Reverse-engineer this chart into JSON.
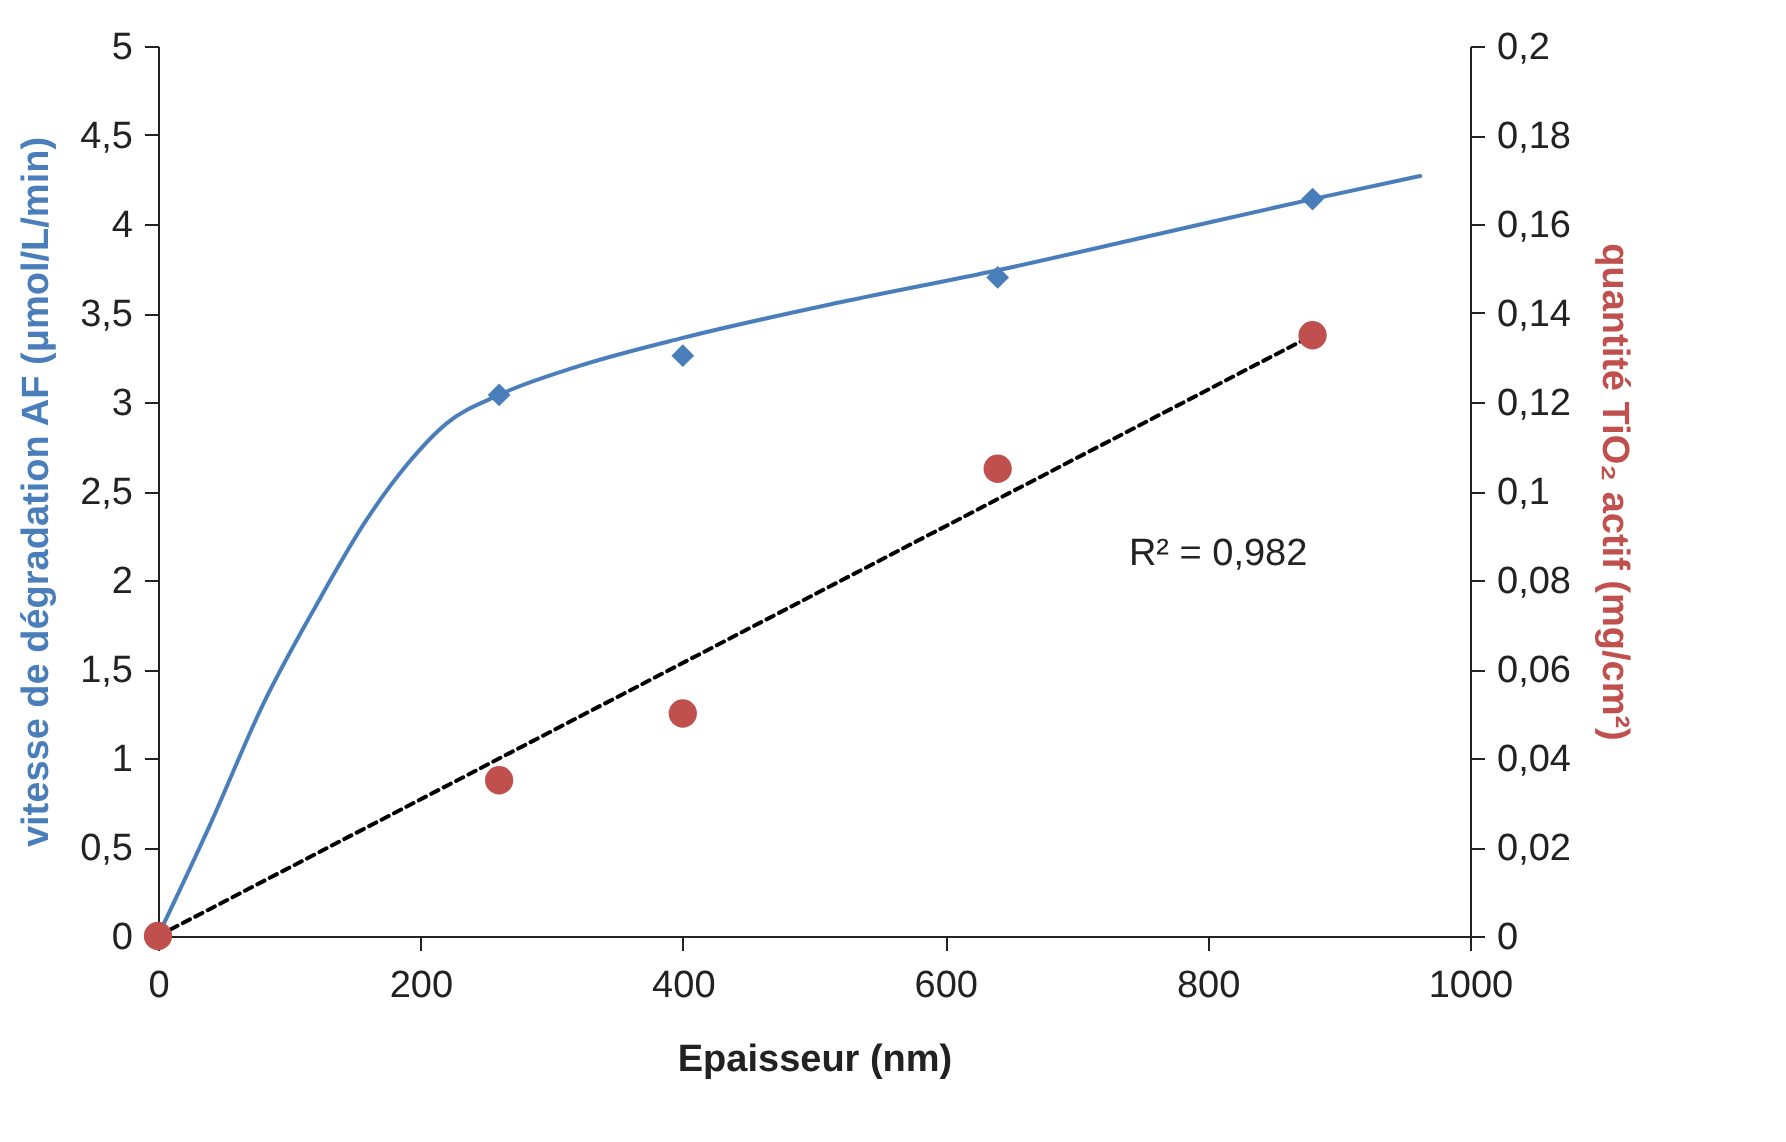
{
  "chart_data": {
    "type": "scatter",
    "xlabel": "Epaisseur (nm)",
    "ylabel": "vitesse de dégradation AF (μmol/L/min)",
    "y2label": "quantité TiO₂ actif (mg/cm²)",
    "xlim": [
      0,
      1000
    ],
    "xticks": [
      0,
      200,
      400,
      600,
      800,
      1000
    ],
    "ylim": [
      0,
      5
    ],
    "yticks": [
      {
        "value": 0,
        "label": "0"
      },
      {
        "value": 0.5,
        "label": "0,5"
      },
      {
        "value": 1,
        "label": "1"
      },
      {
        "value": 1.5,
        "label": "1,5"
      },
      {
        "value": 2,
        "label": "2"
      },
      {
        "value": 2.5,
        "label": "2,5"
      },
      {
        "value": 3,
        "label": "3"
      },
      {
        "value": 3.5,
        "label": "3,5"
      },
      {
        "value": 4,
        "label": "4"
      },
      {
        "value": 4.5,
        "label": "4,5"
      },
      {
        "value": 5,
        "label": "5"
      }
    ],
    "y2lim": [
      0,
      0.2
    ],
    "y2ticks": [
      {
        "value": 0,
        "label": "0"
      },
      {
        "value": 0.02,
        "label": "0,02"
      },
      {
        "value": 0.04,
        "label": "0,04"
      },
      {
        "value": 0.06,
        "label": "0,06"
      },
      {
        "value": 0.08,
        "label": "0,08"
      },
      {
        "value": 0.1,
        "label": "0,1"
      },
      {
        "value": 0.12,
        "label": "0,12"
      },
      {
        "value": 0.14,
        "label": "0,14"
      },
      {
        "value": 0.16,
        "label": "0,16"
      },
      {
        "value": 0.18,
        "label": "0,18"
      },
      {
        "value": 0.2,
        "label": "0,2"
      }
    ],
    "grid": false,
    "annotations": [
      "R² = 0,982"
    ],
    "series": [
      {
        "type": "line",
        "color": "#4a7ebb",
        "marker": "none",
        "x": [
          0,
          40,
          80,
          120,
          160,
          190,
          220,
          260,
          320,
          400,
          520,
          640,
          760,
          880,
          962
        ],
        "values": [
          0,
          0.63,
          1.3,
          1.85,
          2.35,
          2.65,
          2.88,
          3.04,
          3.2,
          3.36,
          3.56,
          3.74,
          3.94,
          4.14,
          4.27
        ]
      },
      {
        "color": "#4a7ebb",
        "marker": "diamond",
        "x": [
          260,
          400,
          640,
          880
        ],
        "values": [
          3.04,
          3.26,
          3.7,
          4.14
        ]
      },
      {
        "type": "line",
        "axis": "y2",
        "color": "#000000",
        "line_style": "dashed",
        "marker": "none",
        "x": [
          0,
          880
        ],
        "values": [
          0,
          0.135
        ]
      },
      {
        "axis": "y2",
        "color": "#c0504d",
        "marker": "circle",
        "x": [
          0,
          260,
          400,
          640,
          880
        ],
        "values": [
          0,
          0.035,
          0.05,
          0.105,
          0.135
        ]
      }
    ]
  }
}
